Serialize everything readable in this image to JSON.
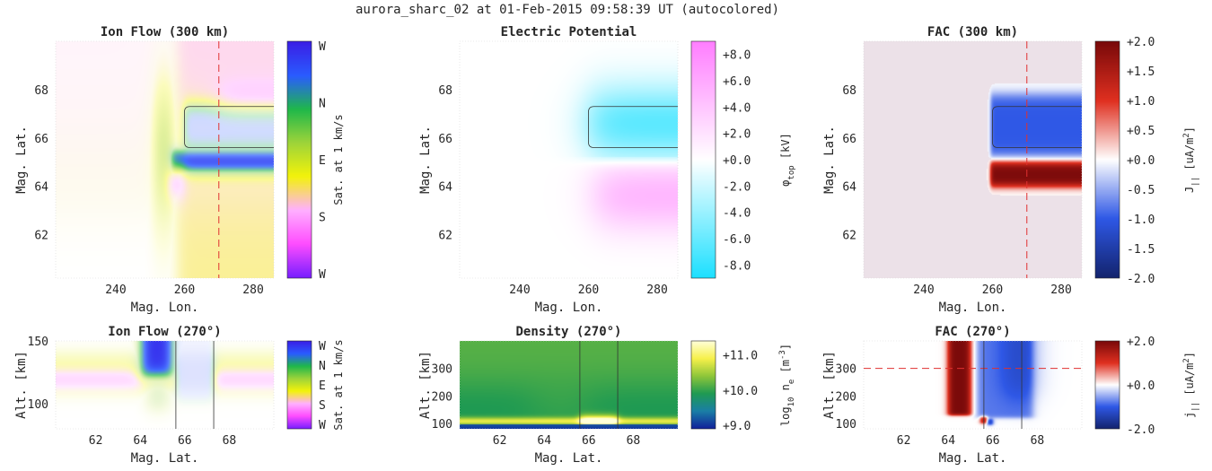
{
  "figure": {
    "title": "aurora_sharc_02 at 01-Feb-2015 09:58:39 UT (autocolored)"
  },
  "colors": {
    "ion_flow_map": [
      "#7a1fff",
      "#ff4dff",
      "#ffb0ff",
      "#f3f30a",
      "#9ed43a",
      "#1fb84a",
      "#2a5cff",
      "#3a1fe6"
    ],
    "potential_map": [
      "#1ee0ff",
      "#ffffff",
      "#ff7fff"
    ],
    "fac_map": [
      "#13246e",
      "#2f58e6",
      "#ffffff",
      "#e03020",
      "#7a0a0a"
    ],
    "density_map": [
      "#11229a",
      "#1a7fa6",
      "#1f9a52",
      "#8ec63a",
      "#f6f04a",
      "#ffffd8"
    ],
    "marker_line": "#e03030"
  },
  "chart_data": [
    {
      "id": "ion_flow_300",
      "type": "heatmap",
      "title": "Ion Flow (300 km)",
      "xlabel": "Mag. Lon.",
      "ylabel": "Mag. Lat.",
      "xlim": [
        222.5,
        286
      ],
      "ylim": [
        60.2,
        70
      ],
      "xticks": [
        240,
        260,
        280
      ],
      "yticks": [
        62,
        64,
        66,
        68
      ],
      "colorbar": {
        "label": "Sat. at 1 km/s",
        "ticks": [
          "W",
          "N",
          "E",
          "S",
          "W"
        ]
      },
      "features": {
        "cut_longitude": 270,
        "arc_region_lat": [
          65.6,
          67.3
        ],
        "arc_region_lon_start": 260,
        "fast_westward_band_lat": [
          64.6,
          65.5
        ]
      }
    },
    {
      "id": "potential",
      "type": "heatmap",
      "title": "Electric Potential",
      "xlabel": "Mag. Lon.",
      "ylabel": "Mag. Lat.",
      "xlim": [
        222.5,
        286
      ],
      "ylim": [
        60.2,
        70
      ],
      "xticks": [
        240,
        260,
        280
      ],
      "yticks": [
        62,
        64,
        66,
        68
      ],
      "colorbar": {
        "label": "φtop [kV]",
        "label_base": "φ",
        "label_sub": "top",
        "label_unit": " [kV]",
        "ticks": [
          "+8.0",
          "+6.0",
          "+4.0",
          "+2.0",
          "+0.0",
          "-2.0",
          "-4.0",
          "-6.0",
          "-8.0"
        ],
        "range": [
          -9,
          9
        ]
      },
      "features": {
        "arc_region_lat": [
          65.6,
          67.3
        ],
        "negative_peak_kV": -6.5,
        "positive_peak_kV": 5.0
      }
    },
    {
      "id": "fac_300",
      "type": "heatmap",
      "title": "FAC (300 km)",
      "xlabel": "Mag. Lon.",
      "ylabel": "Mag. Lat.",
      "xlim": [
        222.5,
        286
      ],
      "ylim": [
        60.2,
        70
      ],
      "xticks": [
        240,
        260,
        280
      ],
      "yticks": [
        62,
        64,
        66,
        68
      ],
      "colorbar": {
        "label": "J|| [uA/m2]",
        "label_base": "J",
        "label_sub": "||",
        "label_unit": " [uA/m",
        "label_sup": "2",
        "label_end": "]",
        "ticks": [
          "+2.0",
          "+1.5",
          "+1.0",
          "+0.5",
          "+0.0",
          "-0.5",
          "-1.0",
          "-1.5",
          "-2.0"
        ],
        "range": [
          -2,
          2
        ]
      },
      "features": {
        "cut_longitude": 270,
        "downward_current_lat": [
          65.2,
          67.8
        ],
        "downward_current_value": -1.0,
        "upward_current_lat": [
          64.0,
          65.0
        ],
        "upward_current_value": 2.0
      }
    },
    {
      "id": "ion_flow_270",
      "type": "heatmap",
      "title": "Ion Flow (270°)",
      "xlabel": "Mag. Lat.",
      "ylabel": "Alt. [km]",
      "xlim": [
        60.2,
        70
      ],
      "ylim": [
        80,
        150
      ],
      "xticks": [
        62,
        64,
        66,
        68
      ],
      "yticks": [
        100,
        150
      ],
      "colorbar": {
        "label": "Sat. at 1 km/s",
        "ticks": [
          "W",
          "N",
          "E",
          "S",
          "W"
        ]
      },
      "features": {
        "arc_boundaries_lat": [
          65.6,
          67.3
        ]
      }
    },
    {
      "id": "density_270",
      "type": "heatmap",
      "title": "Density (270°)",
      "xlabel": "Mag. Lat.",
      "ylabel": "Alt. [km]",
      "xlim": [
        60.2,
        70
      ],
      "ylim": [
        80,
        400
      ],
      "xticks": [
        62,
        64,
        66,
        68
      ],
      "yticks": [
        100,
        200,
        300
      ],
      "colorbar": {
        "label": "log10 ne [m-3]",
        "label_base": "log",
        "label_sub": "10",
        "label_mid": " n",
        "label_sub2": "e",
        "label_unit": " [m",
        "label_sup": "-3",
        "label_end": "]",
        "ticks": [
          "+11.0",
          "+10.0",
          "+9.0"
        ],
        "range": [
          8.9,
          11.4
        ]
      },
      "features": {
        "arc_boundaries_lat": [
          65.6,
          67.3
        ]
      }
    },
    {
      "id": "fac_270",
      "type": "heatmap",
      "title": "FAC (270°)",
      "xlabel": "Mag. Lat.",
      "ylabel": "Alt. [km]",
      "xlim": [
        60.2,
        70
      ],
      "ylim": [
        80,
        400
      ],
      "xticks": [
        62,
        64,
        66,
        68
      ],
      "yticks": [
        100,
        200,
        300
      ],
      "colorbar": {
        "label": "j|| [uA/m2]",
        "label_base": "j",
        "label_sub": "||",
        "label_unit": " [uA/m",
        "label_sup": "2",
        "label_end": "]",
        "ticks": [
          "+2.0",
          "+0.0",
          "-2.0"
        ],
        "range": [
          -2,
          2
        ]
      },
      "features": {
        "cut_altitude_km": 300,
        "arc_boundaries_lat": [
          65.6,
          67.3
        ],
        "upward_current_lat": [
          64.0,
          65.0
        ],
        "downward_current_lat": [
          65.3,
          67.8
        ]
      }
    }
  ]
}
